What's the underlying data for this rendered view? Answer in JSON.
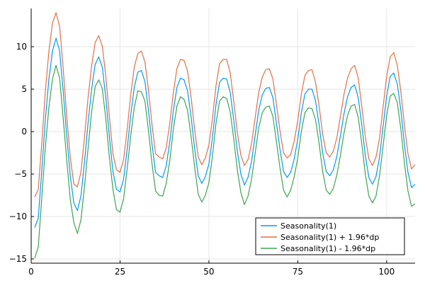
{
  "chart_data": {
    "type": "line",
    "title": "",
    "xlabel": "",
    "ylabel": "",
    "xlim": [
      0,
      108
    ],
    "ylim": [
      -15.5,
      14.5
    ],
    "x_ticks": [
      0,
      25,
      50,
      75,
      100
    ],
    "y_ticks": [
      -15,
      -10,
      -5,
      0,
      5,
      10
    ],
    "x_tick_labels": [
      "0",
      "25",
      "50",
      "75",
      "100"
    ],
    "y_tick_labels": [
      "−15",
      "−10",
      "−5",
      "0",
      "5",
      "10"
    ],
    "grid": true,
    "legend_position": "bottom-right",
    "x": [
      1,
      2,
      3,
      4,
      5,
      6,
      7,
      8,
      9,
      10,
      11,
      12,
      13,
      14,
      15,
      16,
      17,
      18,
      19,
      20,
      21,
      22,
      23,
      24,
      25,
      26,
      27,
      28,
      29,
      30,
      31,
      32,
      33,
      34,
      35,
      36,
      37,
      38,
      39,
      40,
      41,
      42,
      43,
      44,
      45,
      46,
      47,
      48,
      49,
      50,
      51,
      52,
      53,
      54,
      55,
      56,
      57,
      58,
      59,
      60,
      61,
      62,
      63,
      64,
      65,
      66,
      67,
      68,
      69,
      70,
      71,
      72,
      73,
      74,
      75,
      76,
      77,
      78,
      79,
      80,
      81,
      82,
      83,
      84,
      85,
      86,
      87,
      88,
      89,
      90,
      91,
      92,
      93,
      94,
      95,
      96,
      97,
      98,
      99,
      100,
      101,
      102,
      103,
      104,
      105,
      106,
      107,
      108
    ],
    "series": [
      {
        "name": "Seasonality(1)",
        "color": "#009AFA",
        "values": [
          -11.3,
          -10.2,
          -4.5,
          1.5,
          6.2,
          9.5,
          11.0,
          9.5,
          4.8,
          -0.5,
          -5.2,
          -8.4,
          -9.3,
          -7.6,
          -3.6,
          1.0,
          5.0,
          7.9,
          8.8,
          7.6,
          4.0,
          -0.6,
          -4.7,
          -6.8,
          -7.1,
          -5.6,
          -2.1,
          1.9,
          5.2,
          7.0,
          7.2,
          5.9,
          2.5,
          -1.5,
          -4.8,
          -5.2,
          -5.4,
          -4.0,
          -1.2,
          2.5,
          5.2,
          6.3,
          6.1,
          4.8,
          1.7,
          -2.0,
          -5.2,
          -6.1,
          -5.3,
          -3.8,
          -0.7,
          3.2,
          5.8,
          6.3,
          6.2,
          4.6,
          1.3,
          -2.3,
          -5.0,
          -6.3,
          -5.4,
          -3.5,
          -0.5,
          2.5,
          4.3,
          5.1,
          5.2,
          4.0,
          1.0,
          -2.1,
          -4.7,
          -5.4,
          -4.8,
          -3.2,
          -0.9,
          2.2,
          4.4,
          5.0,
          5.0,
          3.6,
          0.8,
          -2.5,
          -4.7,
          -5.2,
          -4.5,
          -2.9,
          -0.5,
          2.1,
          4.1,
          5.2,
          5.5,
          4.0,
          0.8,
          -2.8,
          -5.4,
          -6.2,
          -5.3,
          -3.0,
          0.6,
          4.2,
          6.5,
          6.9,
          5.6,
          2.5,
          -1.5,
          -4.8,
          -6.6,
          -6.2
        ],
        "upper": [
          -7.7,
          -6.8,
          -1.3,
          4.8,
          9.5,
          12.8,
          14.0,
          12.4,
          7.5,
          1.8,
          -3.0,
          -6.2,
          -6.5,
          -4.8,
          -0.7,
          4.0,
          7.7,
          10.5,
          11.3,
          10.1,
          6.5,
          1.8,
          -2.6,
          -4.5,
          -4.8,
          -3.3,
          0.2,
          4.3,
          7.6,
          9.2,
          9.5,
          8.2,
          4.9,
          0.8,
          -2.6,
          -3.0,
          -3.2,
          -1.9,
          1.0,
          4.6,
          7.4,
          8.5,
          8.4,
          7.1,
          4.0,
          0.2,
          -3.0,
          -3.9,
          -3.1,
          -1.6,
          1.5,
          5.4,
          8.0,
          8.5,
          8.5,
          6.9,
          3.5,
          -0.1,
          -2.8,
          -4.0,
          -3.3,
          -1.4,
          1.6,
          4.6,
          6.4,
          7.3,
          7.4,
          6.2,
          3.2,
          0.1,
          -2.5,
          -3.1,
          -2.7,
          -1.1,
          1.3,
          4.4,
          6.6,
          7.2,
          7.3,
          5.8,
          3.0,
          -0.3,
          -2.5,
          -3.0,
          -2.3,
          -0.7,
          1.8,
          4.4,
          6.3,
          7.4,
          7.8,
          6.3,
          3.0,
          -0.6,
          -3.2,
          -4.0,
          -3.0,
          -0.8,
          2.9,
          6.5,
          8.8,
          9.3,
          7.8,
          4.7,
          0.7,
          -2.6,
          -4.4,
          -3.9
        ],
        "lower": [
          -14.9,
          -13.6,
          -7.7,
          -1.8,
          2.9,
          6.2,
          7.8,
          6.3,
          1.6,
          -3.3,
          -8.0,
          -10.7,
          -12.0,
          -10.4,
          -6.5,
          -2.0,
          2.3,
          5.3,
          6.1,
          5.1,
          1.5,
          -3.0,
          -6.8,
          -9.2,
          -9.5,
          -7.9,
          -4.4,
          -0.5,
          2.8,
          4.8,
          4.7,
          3.6,
          0.1,
          -3.8,
          -7.0,
          -7.5,
          -7.6,
          -6.1,
          -3.4,
          0.3,
          3.0,
          4.1,
          3.8,
          2.5,
          -0.6,
          -4.2,
          -7.4,
          -8.3,
          -7.5,
          -6.0,
          -2.9,
          1.0,
          3.6,
          4.1,
          3.9,
          2.3,
          -0.9,
          -4.5,
          -7.2,
          -8.6,
          -7.6,
          -5.6,
          -2.6,
          0.4,
          2.2,
          2.9,
          3.0,
          1.8,
          -1.2,
          -4.3,
          -6.9,
          -7.7,
          -6.9,
          -5.3,
          -3.1,
          0.0,
          2.2,
          2.8,
          2.7,
          1.4,
          -1.4,
          -4.7,
          -6.9,
          -7.4,
          -6.7,
          -5.1,
          -2.8,
          -0.2,
          1.9,
          3.0,
          3.2,
          1.7,
          -1.4,
          -5.0,
          -7.6,
          -8.4,
          -7.6,
          -5.2,
          -1.7,
          1.9,
          4.2,
          4.5,
          3.4,
          0.3,
          -3.7,
          -7.0,
          -8.8,
          -8.5
        ]
      }
    ],
    "legend": [
      {
        "label": "Seasonality(1)",
        "color": "#009AFA"
      },
      {
        "label": "Seasonality(1) + 1.96*dp",
        "color": "#E36F47"
      },
      {
        "label": "Seasonality(1) - 1.96*dp",
        "color": "#3EA44E"
      }
    ]
  }
}
